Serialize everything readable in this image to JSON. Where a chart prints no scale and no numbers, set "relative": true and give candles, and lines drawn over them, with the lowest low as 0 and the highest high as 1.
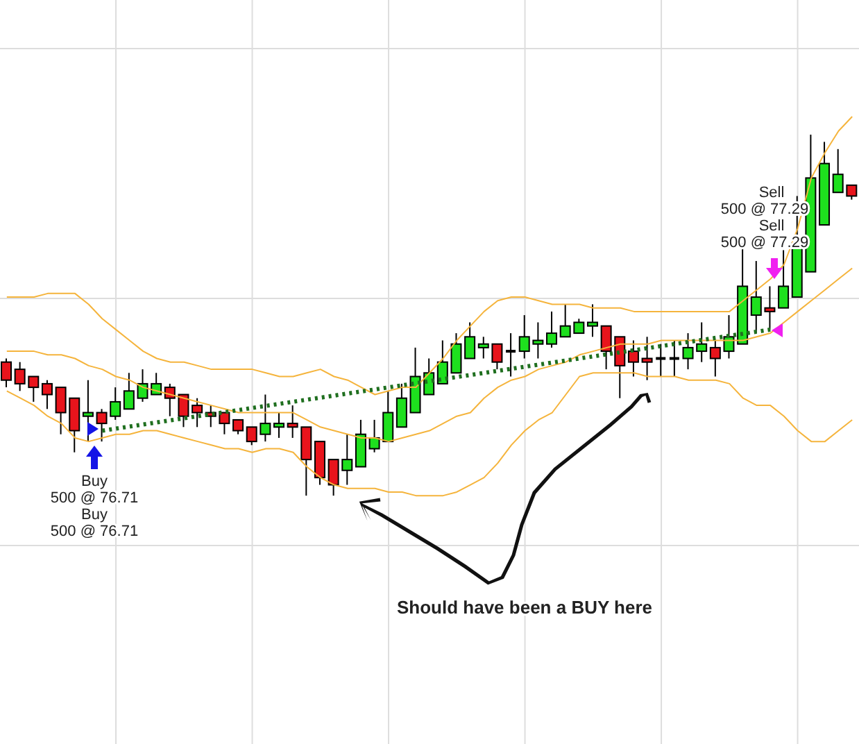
{
  "chart_data": {
    "type": "candlestick",
    "relative": true,
    "grid": true,
    "marker": "none",
    "categories": [
      null,
      null,
      null,
      null,
      null,
      null,
      null,
      null,
      null,
      null,
      null,
      null,
      null,
      null,
      null,
      null,
      null,
      null,
      null,
      null,
      null,
      null,
      null,
      null,
      null,
      null,
      null,
      null,
      null,
      null,
      null,
      null,
      null,
      null,
      null,
      null,
      null,
      null,
      null,
      null,
      null,
      null,
      null,
      null,
      null,
      null,
      null,
      null,
      null,
      null,
      null,
      null,
      null,
      null,
      null,
      null,
      null,
      null,
      null,
      null,
      null,
      null,
      null
    ],
    "ohlc": [
      [
        0.37,
        0.38,
        0.3,
        0.32
      ],
      [
        0.35,
        0.37,
        0.29,
        0.31
      ],
      [
        0.33,
        0.33,
        0.26,
        0.3
      ],
      [
        0.31,
        0.32,
        0.24,
        0.28
      ],
      [
        0.3,
        0.3,
        0.17,
        0.23
      ],
      [
        0.27,
        0.27,
        0.12,
        0.18
      ],
      [
        0.22,
        0.32,
        0.15,
        0.23
      ],
      [
        0.23,
        0.24,
        0.15,
        0.2
      ],
      [
        0.22,
        0.3,
        0.21,
        0.26
      ],
      [
        0.24,
        0.34,
        0.24,
        0.29
      ],
      [
        0.27,
        0.35,
        0.26,
        0.31
      ],
      [
        0.28,
        0.34,
        0.28,
        0.31
      ],
      [
        0.3,
        0.31,
        0.22,
        0.27
      ],
      [
        0.28,
        0.28,
        0.19,
        0.22
      ],
      [
        0.25,
        0.27,
        0.19,
        0.23
      ],
      [
        0.23,
        0.25,
        0.19,
        0.22
      ],
      [
        0.23,
        0.23,
        0.17,
        0.2
      ],
      [
        0.21,
        0.21,
        0.17,
        0.18
      ],
      [
        0.19,
        0.19,
        0.14,
        0.15
      ],
      [
        0.17,
        0.28,
        0.15,
        0.2
      ],
      [
        0.19,
        0.23,
        0.16,
        0.2
      ],
      [
        0.2,
        0.25,
        0.16,
        0.19
      ],
      [
        0.19,
        0.19,
        0,
        0.1
      ],
      [
        0.15,
        0.15,
        0.03,
        0.05
      ],
      [
        0.1,
        0.1,
        0,
        0.03
      ],
      [
        0.07,
        0.17,
        0.03,
        0.1
      ],
      [
        0.08,
        0.21,
        0.08,
        0.17
      ],
      [
        0.13,
        0.21,
        0.12,
        0.16
      ],
      [
        0.15,
        0.29,
        0.15,
        0.23
      ],
      [
        0.19,
        0.31,
        0.19,
        0.27
      ],
      [
        0.23,
        0.41,
        0.23,
        0.33
      ],
      [
        0.28,
        0.38,
        0.28,
        0.34
      ],
      [
        0.31,
        0.43,
        0.31,
        0.37
      ],
      [
        0.34,
        0.45,
        0.34,
        0.42
      ],
      [
        0.38,
        0.48,
        0.38,
        0.44
      ],
      [
        0.41,
        0.44,
        0.38,
        0.42
      ],
      [
        0.42,
        0.42,
        0.35,
        0.37
      ],
      [
        0.4,
        0.45,
        0.33,
        0.4
      ],
      [
        0.4,
        0.5,
        0.38,
        0.44
      ],
      [
        0.42,
        0.48,
        0.38,
        0.43
      ],
      [
        0.42,
        0.51,
        0.41,
        0.45
      ],
      [
        0.44,
        0.53,
        0.44,
        0.47
      ],
      [
        0.45,
        0.49,
        0.45,
        0.48
      ],
      [
        0.47,
        0.53,
        0.44,
        0.48
      ],
      [
        0.47,
        0.47,
        0.35,
        0.4
      ],
      [
        0.44,
        0.44,
        0.27,
        0.36
      ],
      [
        0.4,
        0.43,
        0.33,
        0.37
      ],
      [
        0.38,
        0.44,
        0.32,
        0.37
      ],
      [
        0.38,
        0.42,
        0.33,
        0.38
      ],
      [
        0.38,
        0.43,
        0.33,
        0.38
      ],
      [
        0.38,
        0.45,
        0.35,
        0.41
      ],
      [
        0.4,
        0.48,
        0.37,
        0.42
      ],
      [
        0.41,
        0.43,
        0.33,
        0.38
      ],
      [
        0.4,
        0.5,
        0.38,
        0.44
      ],
      [
        0.42,
        0.7,
        0.42,
        0.58
      ],
      [
        0.5,
        0.65,
        0.45,
        0.55
      ],
      [
        0.52,
        0.58,
        0.46,
        0.51
      ],
      [
        0.52,
        0.68,
        0.52,
        0.58
      ],
      [
        0.55,
        0.83,
        0.55,
        0.7
      ],
      [
        0.62,
        1.0,
        0.62,
        0.88
      ],
      [
        0.75,
        0.98,
        0.75,
        0.92
      ],
      [
        0.84,
        0.96,
        0.84,
        0.89
      ],
      [
        0.86,
        0.86,
        0.82,
        0.83
      ]
    ],
    "colors": [
      "#e8141c",
      "#e8141c",
      "#e8141c",
      "#e8141c",
      "#e8141c",
      "#e8141c",
      "#1ee01e",
      "#e8141c",
      "#1ee01e",
      "#1ee01e",
      "#1ee01e",
      "#1ee01e",
      "#e8141c",
      "#e8141c",
      "#e8141c",
      "#e8141c",
      "#e8141c",
      "#e8141c",
      "#e8141c",
      "#1ee01e",
      "#1ee01e",
      "#e8141c",
      "#e8141c",
      "#e8141c",
      "#e8141c",
      "#1ee01e",
      "#1ee01e",
      "#1ee01e",
      "#1ee01e",
      "#1ee01e",
      "#1ee01e",
      "#1ee01e",
      "#1ee01e",
      "#1ee01e",
      "#1ee01e",
      "#1ee01e",
      "#e8141c",
      "#000000",
      "#1ee01e",
      "#1ee01e",
      "#1ee01e",
      "#1ee01e",
      "#1ee01e",
      "#1ee01e",
      "#e8141c",
      "#e8141c",
      "#e8141c",
      "#e8141c",
      "#000000",
      "#000000",
      "#1ee01e",
      "#1ee01e",
      "#e8141c",
      "#1ee01e",
      "#1ee01e",
      "#1ee01e",
      "#e8141c",
      "#1ee01e",
      "#1ee01e",
      "#1ee01e",
      "#1ee01e",
      "#1ee01e",
      "#e8141c"
    ],
    "series": [
      {
        "type": "line",
        "color": "#f5b43c",
        "values": [
          0.55,
          0.55,
          0.55,
          0.56,
          0.56,
          0.56,
          0.53,
          0.49,
          0.46,
          0.43,
          0.4,
          0.38,
          0.37,
          0.37,
          0.36,
          0.35,
          0.35,
          0.35,
          0.35,
          0.34,
          0.33,
          0.33,
          0.34,
          0.35,
          0.33,
          0.32,
          0.3,
          0.28,
          0.29,
          0.3,
          0.3,
          0.34,
          0.38,
          0.43,
          0.47,
          0.51,
          0.54,
          0.55,
          0.55,
          0.54,
          0.53,
          0.53,
          0.53,
          0.52,
          0.52,
          0.52,
          0.51,
          0.51,
          0.51,
          0.51,
          0.51,
          0.51,
          0.51,
          0.51,
          0.54,
          0.57,
          0.6,
          0.64,
          0.74,
          0.88,
          0.95,
          1.01,
          1.05
        ]
      },
      {
        "type": "line",
        "color": "#f5b43c",
        "values": [
          0.4,
          0.4,
          0.4,
          0.39,
          0.39,
          0.38,
          0.36,
          0.35,
          0.33,
          0.32,
          0.3,
          0.29,
          0.28,
          0.27,
          0.26,
          0.25,
          0.24,
          0.23,
          0.23,
          0.23,
          0.23,
          0.23,
          0.21,
          0.19,
          0.18,
          0.17,
          0.16,
          0.16,
          0.15,
          0.16,
          0.17,
          0.18,
          0.2,
          0.22,
          0.23,
          0.27,
          0.3,
          0.32,
          0.33,
          0.35,
          0.36,
          0.37,
          0.39,
          0.4,
          0.41,
          0.42,
          0.42,
          0.42,
          0.43,
          0.43,
          0.43,
          0.43,
          0.43,
          0.43,
          0.43,
          0.44,
          0.45,
          0.48,
          0.51,
          0.54,
          0.57,
          0.6,
          0.63
        ]
      },
      {
        "type": "line",
        "color": "#f5b43c",
        "values": [
          0.29,
          0.27,
          0.25,
          0.22,
          0.2,
          0.16,
          0.15,
          0.16,
          0.17,
          0.17,
          0.18,
          0.18,
          0.17,
          0.16,
          0.15,
          0.14,
          0.13,
          0.13,
          0.12,
          0.13,
          0.13,
          0.12,
          0.08,
          0.05,
          0.03,
          0.02,
          0.02,
          0.02,
          0.01,
          0.01,
          0,
          0,
          0,
          0.01,
          0.03,
          0.05,
          0.09,
          0.14,
          0.18,
          0.21,
          0.23,
          0.28,
          0.33,
          0.34,
          0.34,
          0.34,
          0.34,
          0.33,
          0.33,
          0.33,
          0.32,
          0.32,
          0.32,
          0.31,
          0.27,
          0.25,
          0.25,
          0.22,
          0.18,
          0.15,
          0.15,
          0.18,
          0.21
        ]
      },
      {
        "type": "line",
        "color": "#1f6f1f",
        "line_style": "dotted",
        "values": [
          null,
          null,
          null,
          null,
          null,
          null,
          null,
          0.18,
          null,
          null,
          null,
          null,
          null,
          null,
          null,
          null,
          null,
          null,
          null,
          null,
          null,
          null,
          null,
          null,
          null,
          null,
          null,
          null,
          null,
          null,
          null,
          null,
          null,
          null,
          null,
          null,
          null,
          null,
          null,
          null,
          null,
          null,
          null,
          null,
          null,
          null,
          null,
          null,
          null,
          null,
          null,
          null,
          null,
          null,
          null,
          null,
          0.46,
          null,
          null,
          null,
          null,
          null,
          null
        ]
      }
    ],
    "annotations": [
      "Buy",
      "500 @ 76.71",
      "Buy",
      "500 @ 76.71",
      "Sell",
      "500 @ 77.29",
      "Sell",
      "500 @ 77.29",
      "Should have been a BUY here"
    ]
  }
}
